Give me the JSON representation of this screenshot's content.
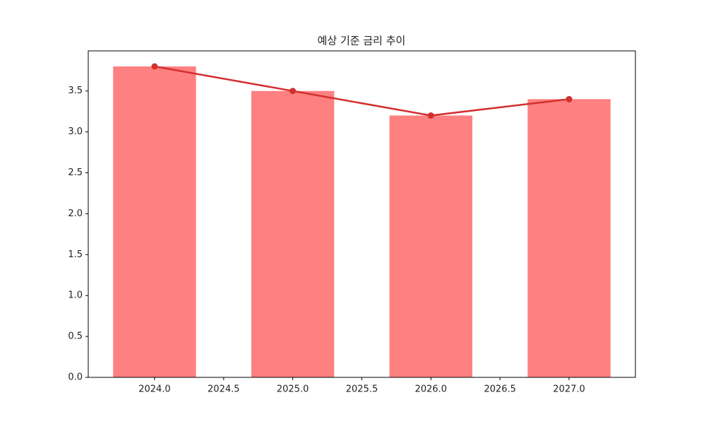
{
  "chart_data": {
    "type": "bar",
    "title": "예상 기준 금리 추이",
    "x": [
      2024,
      2025,
      2026,
      2027
    ],
    "series": [
      {
        "type": "bar",
        "color": "#ff8080",
        "values": [
          3.8,
          3.5,
          3.2,
          3.4
        ]
      },
      {
        "type": "line",
        "color": "#d32f2f",
        "values": [
          3.8,
          3.5,
          3.2,
          3.4
        ]
      }
    ],
    "xlim": [
      2023.52,
      2027.48
    ],
    "xticks": [
      {
        "value": 2024,
        "label": "2024.0"
      },
      {
        "value": 2024.5,
        "label": "2024.5"
      },
      {
        "value": 2025,
        "label": "2025.0"
      },
      {
        "value": 2025.5,
        "label": "2025.5"
      },
      {
        "value": 2026,
        "label": "2026.0"
      },
      {
        "value": 2026.5,
        "label": "2026.5"
      },
      {
        "value": 2027,
        "label": "2027.0"
      }
    ],
    "ylim": [
      0,
      3.99
    ],
    "yticks": [
      {
        "value": 0,
        "label": "0.0"
      },
      0.5,
      {
        "value": 1,
        "label": "1.0"
      },
      1.5,
      {
        "value": 2,
        "label": "2.0"
      },
      2.5,
      {
        "value": 3,
        "label": "3.0"
      },
      3.5
    ],
    "grid": false
  }
}
